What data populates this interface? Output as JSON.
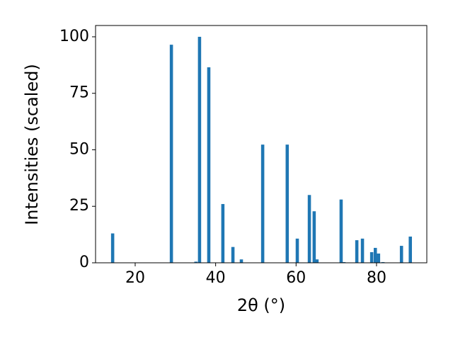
{
  "chart_data": {
    "type": "bar",
    "xlabel": "2θ (°)",
    "ylabel": "Intensities (scaled)",
    "x": [
      14.4,
      29.0,
      35.1,
      36.0,
      38.3,
      41.8,
      44.3,
      46.4,
      51.7,
      57.8,
      60.3,
      63.3,
      64.5,
      65.2,
      71.2,
      71.9,
      75.1,
      76.5,
      78.8,
      79.7,
      80.5,
      81.6,
      86.2,
      88.4
    ],
    "values": [
      13,
      96.5,
      0.5,
      100,
      86.5,
      26,
      7,
      1.5,
      52.3,
      52.3,
      10.7,
      30,
      22.8,
      1.5,
      28,
      0.3,
      10,
      10.7,
      4.7,
      6.6,
      4.1,
      0.3,
      7.5,
      11.6
    ],
    "color": "#1f77b4",
    "xlim": [
      10.15,
      92.5
    ],
    "ylim": [
      0,
      105
    ],
    "xticks": [
      20,
      40,
      60,
      80
    ],
    "yticks": [
      0,
      25,
      50,
      75,
      100
    ],
    "grid": false
  }
}
